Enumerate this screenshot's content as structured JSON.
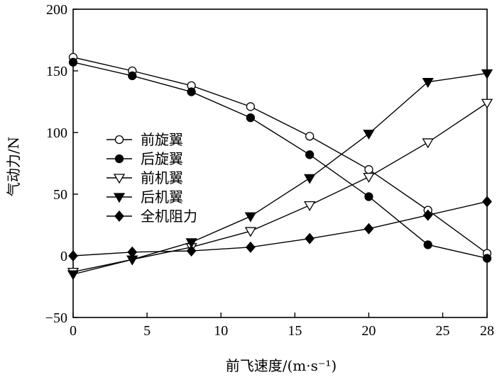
{
  "chart_data": {
    "type": "line",
    "title": "",
    "xlabel": "前飞速度/(m·s⁻¹)",
    "ylabel": "气动力/N",
    "x": [
      0,
      4,
      8,
      12,
      16,
      20,
      24,
      28
    ],
    "xlim": [
      0,
      28
    ],
    "ylim": [
      -50,
      200
    ],
    "xticks": [
      0,
      5,
      10,
      15,
      20,
      25,
      28
    ],
    "yticks": [
      -50,
      0,
      50,
      100,
      150,
      200
    ],
    "grid": false,
    "legend_position": "center-left",
    "series": [
      {
        "name": "前旋翼",
        "marker": "open-circle",
        "values": [
          161,
          150,
          138,
          121,
          97,
          70,
          37,
          2
        ]
      },
      {
        "name": "后旋翼",
        "marker": "filled-circle",
        "values": [
          157,
          146,
          133,
          112,
          82,
          48,
          9,
          -2
        ]
      },
      {
        "name": "前机翼",
        "marker": "open-triangle-down",
        "values": [
          -13,
          -3,
          7,
          20,
          41,
          64,
          92,
          124
        ]
      },
      {
        "name": "后机翼",
        "marker": "filled-triangle-down",
        "values": [
          -15,
          -3,
          11,
          32,
          63,
          99,
          141,
          148
        ]
      },
      {
        "name": "全机阻力",
        "marker": "filled-diamond",
        "values": [
          0,
          3,
          4,
          7,
          14,
          22,
          33,
          44
        ]
      }
    ]
  }
}
